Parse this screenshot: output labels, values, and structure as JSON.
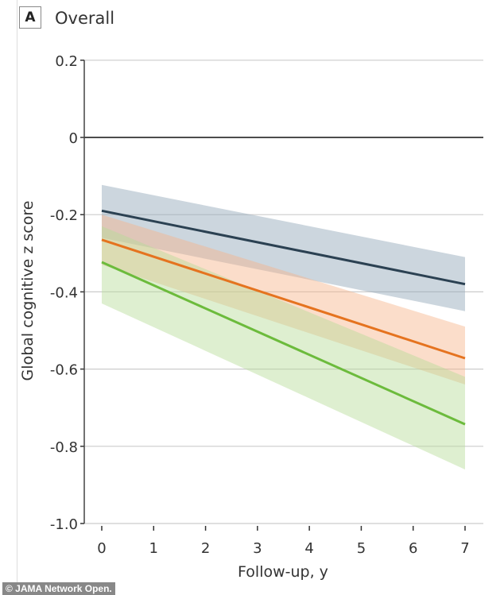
{
  "panel_label": "A",
  "panel_title": "Overall",
  "credit": "© JAMA Network Open.",
  "chart_data": {
    "type": "line",
    "title": "Overall",
    "xlabel": "Follow-up, y",
    "ylabel": "Global cognitive z score",
    "xlim": [
      0,
      7
    ],
    "ylim": [
      -1.0,
      0.2
    ],
    "xticks": [
      "0",
      "1",
      "2",
      "3",
      "4",
      "5",
      "6",
      "7"
    ],
    "yticks": [
      {
        "v": 0.2,
        "label": "0.2"
      },
      {
        "v": 0,
        "label": "0"
      },
      {
        "v": -0.2,
        "label": "-0.2"
      },
      {
        "v": -0.4,
        "label": "-0.4"
      },
      {
        "v": -0.6,
        "label": "-0.6"
      },
      {
        "v": -0.8,
        "label": "-0.8"
      },
      {
        "v": -1.0,
        "label": "-1.0"
      }
    ],
    "grid": true,
    "series": [
      {
        "name": "navy",
        "color": "#2b4152",
        "band_color": "#8ea3b6",
        "x": [
          0,
          7
        ],
        "y": [
          -0.19,
          -0.38
        ],
        "lower": [
          -0.26,
          -0.45
        ],
        "upper": [
          -0.123,
          -0.31
        ]
      },
      {
        "name": "orange",
        "color": "#e5731f",
        "band_color": "#f7b48a",
        "x": [
          0,
          7
        ],
        "y": [
          -0.265,
          -0.572
        ],
        "lower": [
          -0.33,
          -0.64
        ],
        "upper": [
          -0.2,
          -0.49
        ]
      },
      {
        "name": "green",
        "color": "#6cbb3c",
        "band_color": "#b5dc97",
        "x": [
          0,
          7
        ],
        "y": [
          -0.323,
          -0.743
        ],
        "lower": [
          -0.43,
          -0.86
        ],
        "upper": [
          -0.23,
          -0.62
        ]
      }
    ]
  }
}
